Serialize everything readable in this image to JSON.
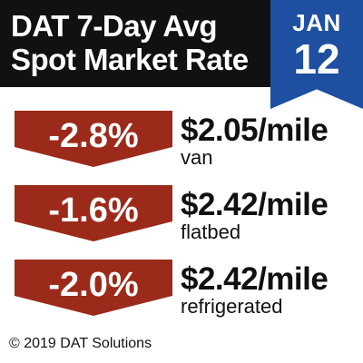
{
  "header": {
    "title_line1": "DAT 7-Day Avg",
    "title_line2": "Spot Market Rate",
    "background": "#111111"
  },
  "date": {
    "month": "JAN",
    "day": "12",
    "color": "#1e4fa1"
  },
  "rows": [
    {
      "change": "-2.8%",
      "rate": "$2.05/mile",
      "type": "van"
    },
    {
      "change": "-1.6%",
      "rate": "$2.42/mile",
      "type": "flatbed"
    },
    {
      "change": "-2.0%",
      "rate": "$2.42/mile",
      "type": "refrigerated"
    }
  ],
  "colors": {
    "decrease_badge": "#9c2a1a",
    "text": "#111111"
  },
  "footer": {
    "copyright": "© 2019 DAT Solutions"
  }
}
